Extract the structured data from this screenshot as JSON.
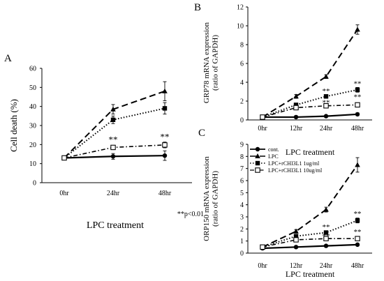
{
  "chart_data": [
    {
      "panel": "A",
      "type": "line",
      "categories": [
        "0hr",
        "24hr",
        "48hr"
      ],
      "xlabel": "LPC treatment",
      "ylabel": "Cell death (%)",
      "ylim": [
        0,
        60
      ],
      "yticks": [
        "0",
        "10",
        "20",
        "30",
        "40",
        "50",
        "60"
      ],
      "grid": false,
      "series": [
        {
          "values": [
            13,
            13.8,
            14.2
          ],
          "errors": [
            0.8,
            1.5,
            2.5
          ],
          "style": "solid",
          "marker": "circle"
        },
        {
          "values": [
            13,
            38.5,
            48
          ],
          "errors": [
            0.8,
            2.5,
            5
          ],
          "style": "dash",
          "marker": "triangle"
        },
        {
          "values": [
            13,
            33,
            39
          ],
          "errors": [
            0.8,
            2,
            3
          ],
          "style": "dot",
          "marker": "square"
        },
        {
          "values": [
            13,
            18.5,
            19.8
          ],
          "errors": [
            0.8,
            1,
            1.5
          ],
          "style": "dashdot",
          "marker": "open-square"
        }
      ],
      "annotations": [
        {
          "text": "**",
          "x": "24hr",
          "y": 22.5
        },
        {
          "text": "**",
          "x": "48hr",
          "y": 24
        }
      ],
      "note": "**p<0.01"
    },
    {
      "panel": "B",
      "type": "line",
      "categories": [
        "0hr",
        "12hr",
        "24hr",
        "48hr"
      ],
      "xlabel": "LPC treatment",
      "ylabel": "GRP78 mRNA expression (ratio of GAPDH)",
      "ylim": [
        0,
        12
      ],
      "yticks": [
        "0",
        "2",
        "4",
        "6",
        "8",
        "10",
        "12"
      ],
      "grid": false,
      "series": [
        {
          "values": [
            0.3,
            0.3,
            0.4,
            0.6
          ],
          "errors": [
            0.1,
            0.1,
            0.1,
            0.15
          ],
          "style": "solid",
          "marker": "circle"
        },
        {
          "values": [
            0.3,
            2.5,
            4.6,
            9.6
          ],
          "errors": [
            0.1,
            0.2,
            0.2,
            0.5
          ],
          "style": "dash",
          "marker": "triangle"
        },
        {
          "values": [
            0.3,
            1.6,
            2.5,
            3.2
          ],
          "errors": [
            0.1,
            0.15,
            0.15,
            0.25
          ],
          "style": "dot",
          "marker": "square"
        },
        {
          "values": [
            0.3,
            1.3,
            1.5,
            1.6
          ],
          "errors": [
            0.1,
            0.1,
            0.1,
            0.15
          ],
          "style": "dashdot",
          "marker": "open-square"
        }
      ],
      "annotations": [
        {
          "text": "**",
          "x": "24hr",
          "y": 3.1
        },
        {
          "text": "**",
          "x": "24hr",
          "y": 1.9
        },
        {
          "text": "**",
          "x": "48hr",
          "y": 3.9
        },
        {
          "text": "**",
          "x": "48hr",
          "y": 2.5
        }
      ]
    },
    {
      "panel": "C",
      "type": "line",
      "categories": [
        "0hr",
        "12hr",
        "24hr",
        "48hr"
      ],
      "xlabel": "LPC treatment",
      "ylabel": "ORP150 mRNA expression (ratio of GAPDH)",
      "ylim": [
        0,
        9
      ],
      "yticks": [
        "0",
        "1",
        "2",
        "3",
        "4",
        "5",
        "6",
        "7",
        "8",
        "9"
      ],
      "grid": false,
      "series": [
        {
          "name": "cont.",
          "values": [
            0.4,
            0.5,
            0.6,
            0.7
          ],
          "errors": [
            0.1,
            0.1,
            0.1,
            0.1
          ],
          "style": "solid",
          "marker": "circle"
        },
        {
          "name": "LPC",
          "values": [
            0.5,
            1.8,
            3.6,
            7.3
          ],
          "errors": [
            0.1,
            0.15,
            0.2,
            0.6
          ],
          "style": "dash",
          "marker": "triangle"
        },
        {
          "name": "LPC+rCHI3L1 1ug/ml",
          "values": [
            0.5,
            1.4,
            1.7,
            2.7
          ],
          "errors": [
            0.1,
            0.1,
            0.1,
            0.2
          ],
          "style": "dot",
          "marker": "square"
        },
        {
          "name": "LPC+rCHI3L1 10ug/ml",
          "values": [
            0.5,
            1.1,
            1.2,
            1.2
          ],
          "errors": [
            0.1,
            0.1,
            0.1,
            0.1
          ],
          "style": "dashdot",
          "marker": "open-square"
        }
      ],
      "legend_position": "top-left",
      "annotations": [
        {
          "text": "**",
          "x": "24hr",
          "y": 2.2
        },
        {
          "text": "**",
          "x": "24hr",
          "y": 1.45
        },
        {
          "text": "**",
          "x": "48hr",
          "y": 3.3
        },
        {
          "text": "**",
          "x": "48hr",
          "y": 1.8
        }
      ]
    }
  ]
}
